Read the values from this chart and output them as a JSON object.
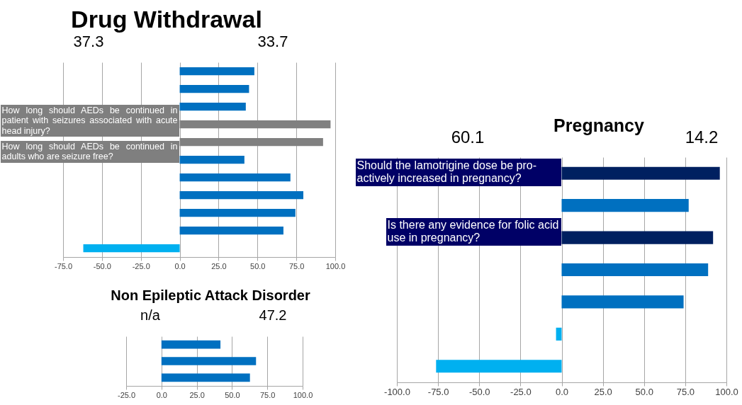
{
  "chart_data": [
    {
      "type": "bar",
      "orientation": "horizontal",
      "title": "Drug Withdrawal",
      "categories": [
        null,
        null,
        null,
        null,
        null,
        null,
        null,
        null,
        null,
        null,
        null
      ],
      "values": [
        48,
        44.6,
        42.5,
        97,
        92.2,
        41.6,
        71.2,
        79.5,
        74.4,
        66.7,
        -62
      ],
      "colors": [
        "#0070c0",
        "#0070c0",
        "#0070c0",
        "#808080",
        "#808080",
        "#0070c0",
        "#0070c0",
        "#0070c0",
        "#0070c0",
        "#0070c0",
        "#00b0f0"
      ],
      "xlim": [
        -75,
        100
      ],
      "xticks": [
        {
          "value": -75,
          "label": "-75.0"
        },
        {
          "value": -50,
          "label": "-50.0"
        },
        {
          "value": -25,
          "label": "-25.0"
        },
        {
          "value": 0,
          "label": "0.0"
        },
        {
          "value": 25,
          "label": "25.0"
        },
        {
          "value": 50,
          "label": "50.0"
        },
        {
          "value": 75,
          "label": "75.0"
        },
        {
          "value": 100,
          "label": "100.0"
        }
      ],
      "grid": "x",
      "tick_labels": "x",
      "annotations": [
        "37.3",
        "33.7",
        "How long should AEDs be continued in patient with seizures associated with acute head injury?",
        "How long should AEDs be continued in adults who are seizure free?"
      ]
    },
    {
      "type": "bar",
      "orientation": "horizontal",
      "title": "Non Epileptic Attack Disorder",
      "categories": [
        null,
        null,
        null
      ],
      "values": [
        41.8,
        67,
        62.7
      ],
      "colors": [
        "#0070c0",
        "#0070c0",
        "#0070c0"
      ],
      "xlim": [
        -25,
        100
      ],
      "xticks": [
        {
          "value": -25,
          "label": "-25.0"
        },
        {
          "value": 0,
          "label": "0.0"
        },
        {
          "value": 25,
          "label": "25.0"
        },
        {
          "value": 50,
          "label": "50.0"
        },
        {
          "value": 75,
          "label": "75.0"
        },
        {
          "value": 100,
          "label": "100.0"
        }
      ],
      "grid": "x",
      "tick_labels": "x",
      "annotations": [
        "n/a",
        "47.2"
      ]
    },
    {
      "type": "bar",
      "orientation": "horizontal",
      "title": "Pregnancy",
      "categories": [
        null,
        null,
        null,
        null,
        null,
        null,
        null
      ],
      "values": [
        96,
        77.1,
        91.9,
        88.9,
        74,
        -3.4,
        -76.2
      ],
      "colors": [
        "#002060",
        "#0070c0",
        "#002060",
        "#0070c0",
        "#0070c0",
        "#00b0f0",
        "#00b0f0"
      ],
      "xlim": [
        -100,
        100
      ],
      "xticks": [
        {
          "value": -100,
          "label": "-100.0"
        },
        {
          "value": -75,
          "label": "-75.0"
        },
        {
          "value": -50,
          "label": "-50.0"
        },
        {
          "value": -25,
          "label": "-25.0"
        },
        {
          "value": 0,
          "label": "0.0"
        },
        {
          "value": 25,
          "label": "25.0"
        },
        {
          "value": 50,
          "label": "50.0"
        },
        {
          "value": 75,
          "label": "75.0"
        },
        {
          "value": 100,
          "label": "100.0"
        }
      ],
      "grid": "x",
      "tick_labels": "x",
      "annotations": [
        "60.1",
        "14.2",
        "Should the lamotrigine dose be pro-actively increased in pregnancy?",
        "Is there any evidence for folic acid use in pregnancy?"
      ]
    }
  ]
}
